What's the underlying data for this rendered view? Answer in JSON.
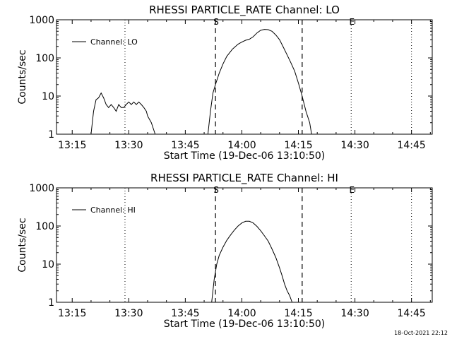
{
  "footer": {
    "timestamp": "18-Oct-2021 22:12"
  },
  "chart_data": [
    {
      "type": "line",
      "title": "RHESSI PARTICLE_RATE Channel: LO",
      "xlabel": "Start Time (19-Dec-06 13:10:50)",
      "ylabel": "Counts/sec",
      "yscale": "log",
      "xlim": [
        "13:10:50",
        "14:50:30"
      ],
      "ylim": [
        1,
        1000
      ],
      "xticks": [
        "13:15",
        "13:30",
        "13:45",
        "14:00",
        "14:15",
        "14:30",
        "14:45"
      ],
      "yticks": [
        "1",
        "10",
        "100",
        "1000"
      ],
      "legend": {
        "label": "Channel: LO",
        "position": "top-left"
      },
      "vlines_dotted": [
        "13:29:00",
        "14:29:00",
        "14:45:00"
      ],
      "vlines_dashed": [
        "13:53:00",
        "14:16:00"
      ],
      "markers": [
        {
          "label": "S",
          "x": "13:53:00"
        },
        {
          "label": "E",
          "x": "14:29:00"
        }
      ],
      "series": [
        {
          "name": "Channel: LO",
          "segments": [
            [
              [
                "13:20:00",
                1
              ],
              [
                "13:20:40",
                4
              ],
              [
                "13:21:20",
                8
              ],
              [
                "13:22:00",
                9
              ],
              [
                "13:22:40",
                12
              ],
              [
                "13:23:20",
                9
              ],
              [
                "13:24:00",
                6
              ],
              [
                "13:24:40",
                5
              ],
              [
                "13:25:20",
                6
              ],
              [
                "13:26:00",
                5
              ],
              [
                "13:26:40",
                4
              ],
              [
                "13:27:20",
                6
              ],
              [
                "13:28:00",
                5
              ],
              [
                "13:28:40",
                5
              ],
              [
                "13:29:20",
                6
              ],
              [
                "13:30:00",
                7
              ],
              [
                "13:30:40",
                6
              ],
              [
                "13:31:20",
                7
              ],
              [
                "13:32:00",
                6
              ],
              [
                "13:32:40",
                7
              ],
              [
                "13:33:20",
                6
              ],
              [
                "13:34:00",
                5
              ],
              [
                "13:34:40",
                4
              ],
              [
                "13:35:00",
                3
              ]
            ],
            [
              [
                "13:35:00",
                3
              ],
              [
                "13:36:00",
                2
              ],
              [
                "13:37:00",
                1
              ]
            ],
            [
              [
                "13:51:00",
                1
              ],
              [
                "13:51:40",
                4
              ],
              [
                "13:52:20",
                12
              ],
              [
                "13:53:00",
                20
              ],
              [
                "13:54:00",
                40
              ],
              [
                "13:55:00",
                70
              ],
              [
                "13:56:00",
                110
              ],
              [
                "13:57:30",
                170
              ],
              [
                "13:59:00",
                230
              ],
              [
                "14:00:00",
                260
              ],
              [
                "14:01:00",
                290
              ],
              [
                "14:02:00",
                310
              ],
              [
                "14:03:00",
                360
              ],
              [
                "14:04:00",
                450
              ],
              [
                "14:05:00",
                530
              ],
              [
                "14:06:00",
                560
              ],
              [
                "14:07:00",
                550
              ],
              [
                "14:08:00",
                500
              ],
              [
                "14:09:00",
                400
              ],
              [
                "14:10:00",
                300
              ],
              [
                "14:11:00",
                190
              ],
              [
                "14:12:00",
                120
              ],
              [
                "14:13:00",
                75
              ],
              [
                "14:14:00",
                45
              ],
              [
                "14:15:00",
                22
              ],
              [
                "14:16:00",
                10
              ],
              [
                "14:17:00",
                4
              ],
              [
                "14:18:00",
                2
              ],
              [
                "14:18:30",
                1
              ]
            ]
          ]
        }
      ]
    },
    {
      "type": "line",
      "title": "RHESSI PARTICLE_RATE Channel: HI",
      "xlabel": "Start Time (19-Dec-06 13:10:50)",
      "ylabel": "Counts/sec",
      "yscale": "log",
      "xlim": [
        "13:10:50",
        "14:50:30"
      ],
      "ylim": [
        1,
        1000
      ],
      "xticks": [
        "13:15",
        "13:30",
        "13:45",
        "14:00",
        "14:15",
        "14:30",
        "14:45"
      ],
      "yticks": [
        "1",
        "10",
        "100",
        "1000"
      ],
      "legend": {
        "label": "Channel: HI",
        "position": "top-left"
      },
      "vlines_dotted": [
        "13:29:00",
        "14:29:00",
        "14:45:00"
      ],
      "vlines_dashed": [
        "13:53:00",
        "14:16:00"
      ],
      "markers": [
        {
          "label": "S",
          "x": "13:53:00"
        },
        {
          "label": "E",
          "x": "14:29:00"
        }
      ],
      "series": [
        {
          "name": "Channel: HI",
          "segments": [
            [
              [
                "13:52:00",
                1
              ],
              [
                "13:52:40",
                4
              ],
              [
                "13:53:20",
                10
              ],
              [
                "13:54:00",
                17
              ],
              [
                "13:55:00",
                28
              ],
              [
                "13:56:00",
                42
              ],
              [
                "13:57:00",
                58
              ],
              [
                "13:58:00",
                78
              ],
              [
                "13:59:00",
                100
              ],
              [
                "14:00:00",
                120
              ],
              [
                "14:01:00",
                133
              ],
              [
                "14:02:00",
                133
              ],
              [
                "14:03:00",
                120
              ],
              [
                "14:04:00",
                98
              ],
              [
                "14:05:00",
                75
              ],
              [
                "14:06:00",
                55
              ],
              [
                "14:07:00",
                40
              ],
              [
                "14:08:00",
                25
              ],
              [
                "14:09:00",
                15
              ],
              [
                "14:10:00",
                8
              ],
              [
                "14:10:40",
                5
              ],
              [
                "14:11:20",
                3
              ],
              [
                "14:12:00",
                2
              ],
              [
                "14:12:40",
                1.5
              ],
              [
                "14:13:20",
                1
              ]
            ]
          ]
        }
      ]
    }
  ]
}
